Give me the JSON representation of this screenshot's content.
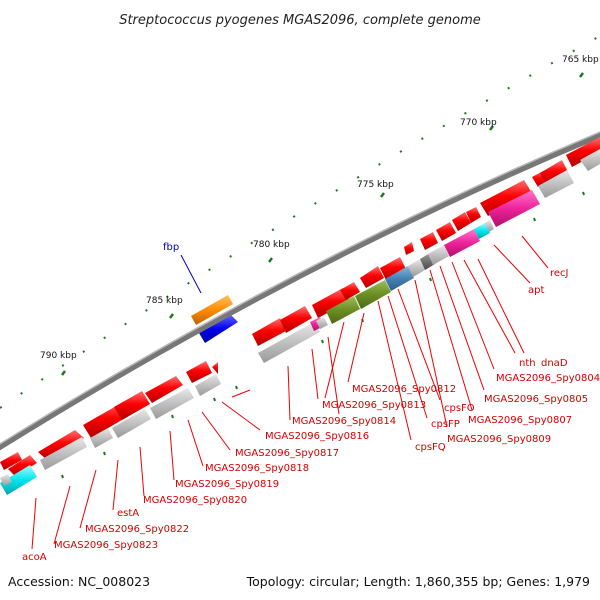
{
  "title": "Streptococcus pyogenes MGAS2096, complete genome",
  "accession": "Accession: NC_008023",
  "summary": "Topology: circular; Length: 1,860,355 bp; Genes: 1,979",
  "ticks": [
    "765 kbp",
    "770 kbp",
    "775 kbp",
    "780 kbp",
    "785 kbp",
    "790 kbp"
  ],
  "colors": {
    "gene_red": "#ff0000",
    "gene_gray": "#bbbbbb",
    "magenta": "#ee2299",
    "olive": "#6b8e23",
    "steelblue": "#4682b4",
    "cyan": "#00e5ee",
    "orange": "#ff8c00",
    "blue": "#0000ee",
    "backbone": "#777777",
    "tick_green": "#1a7a1a",
    "label_red": "#d40000",
    "label_blue": "#0000cc"
  },
  "gene_labels": [
    "recJ",
    "apt",
    "dnaD",
    "nth",
    "MGAS2096_Spy0804",
    "MGAS2096_Spy0805",
    "MGAS2096_Spy0807",
    "MGAS2096_Spy0809",
    "cpsFO",
    "cpsFP",
    "cpsFQ",
    "MGAS2096_Spy0812",
    "MGAS2096_Spy0813",
    "MGAS2096_Spy0814",
    "MGAS2096_Spy0816",
    "MGAS2096_Spy0817",
    "MGAS2096_Spy0818",
    "MGAS2096_Spy0819",
    "MGAS2096_Spy0820",
    "estA",
    "MGAS2096_Spy0822",
    "MGAS2096_Spy0823",
    "acoA"
  ],
  "other_labels": [
    "fbp"
  ]
}
